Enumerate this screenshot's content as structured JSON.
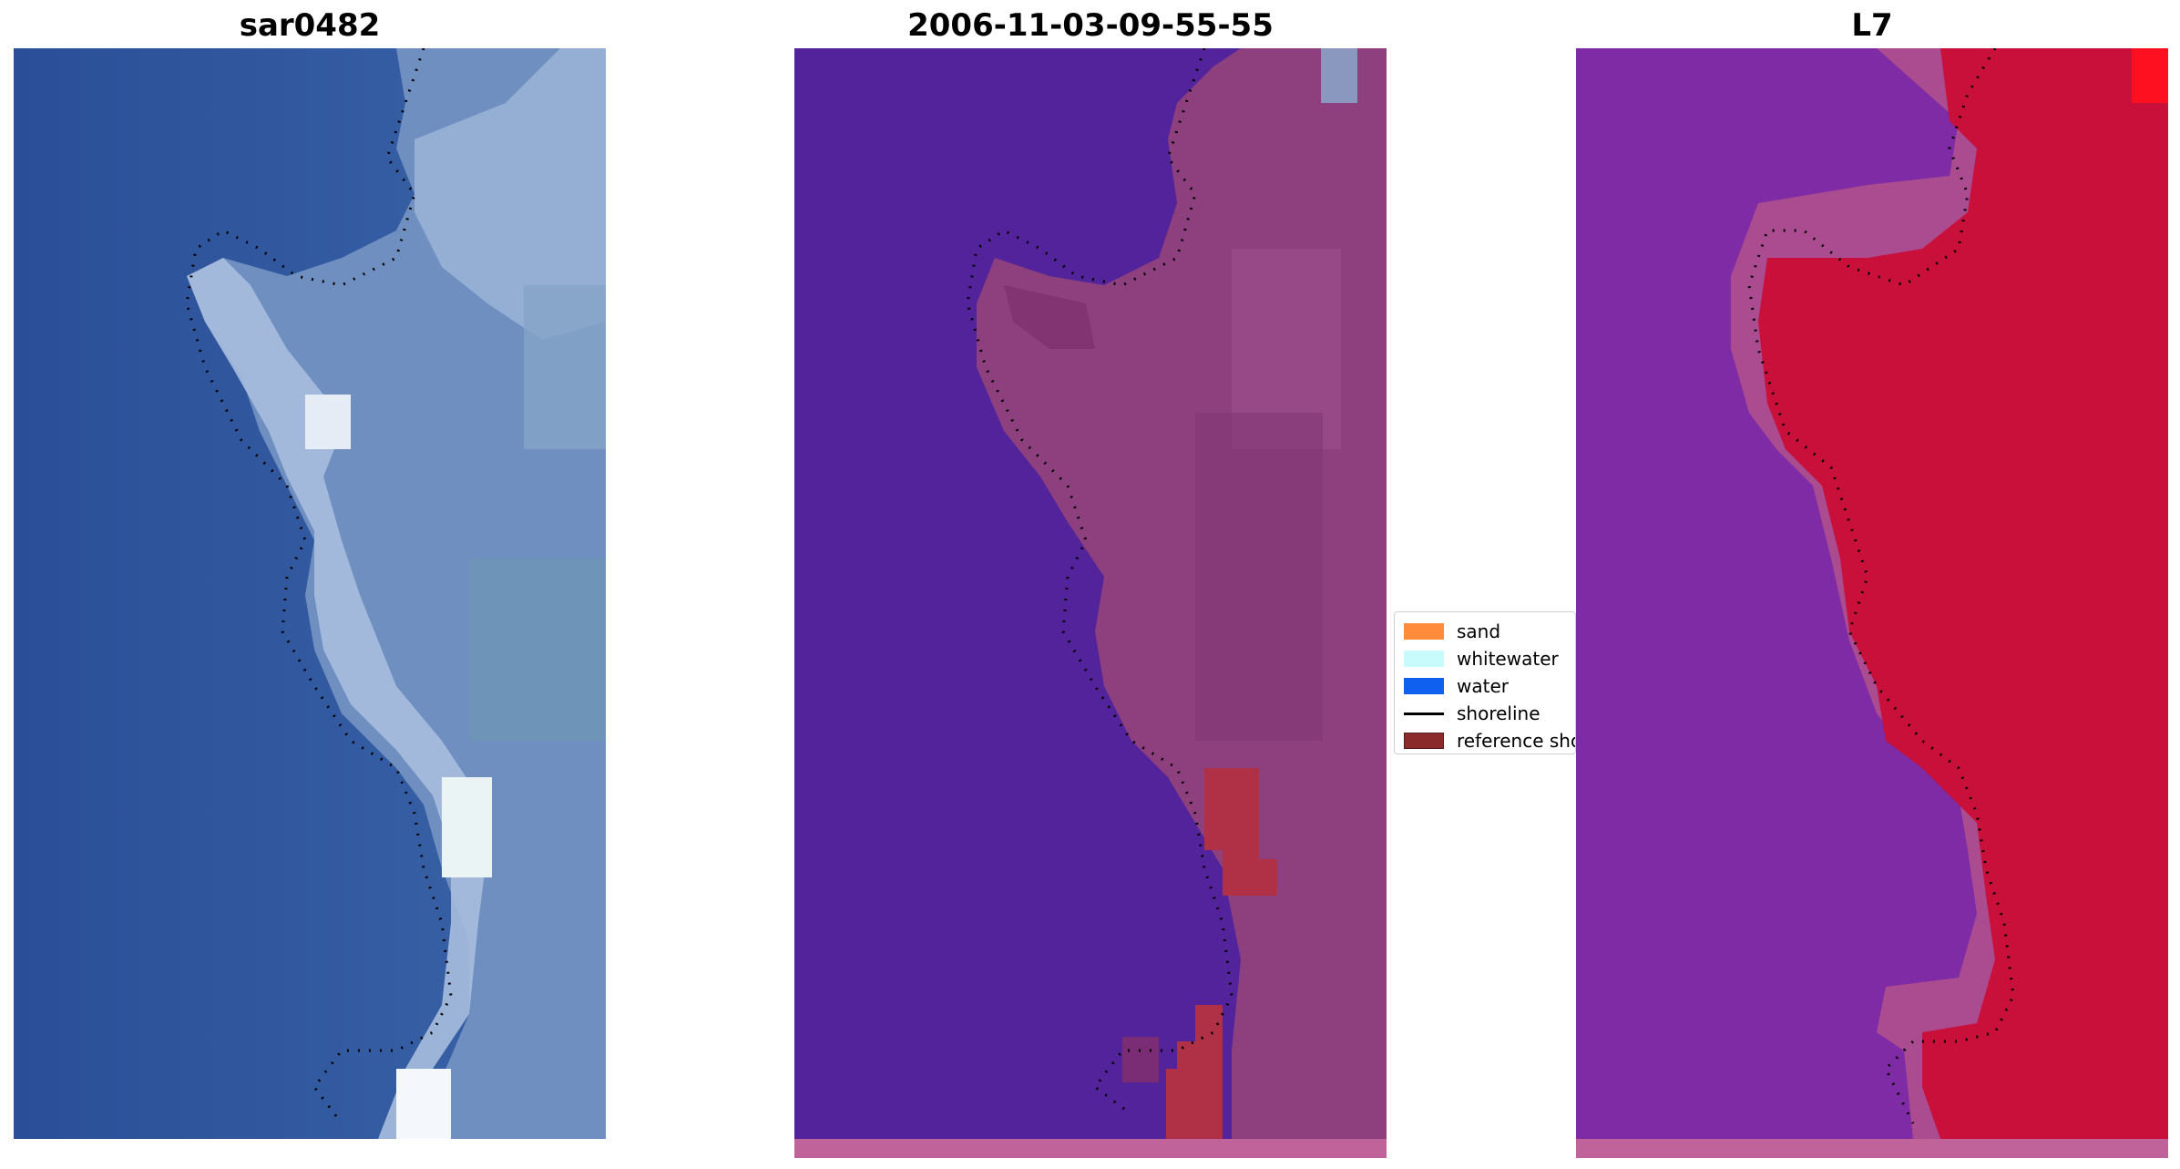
{
  "panels": [
    {
      "title": "sar0482"
    },
    {
      "title": "2006-11-03-09-55-55"
    },
    {
      "title": "L7"
    }
  ],
  "legend": {
    "items": [
      {
        "label": "sand",
        "color": "#ff8c3a",
        "kind": "patch"
      },
      {
        "label": "whitewater",
        "color": "#c8fbfb",
        "kind": "patch"
      },
      {
        "label": "water",
        "color": "#1060f0",
        "kind": "patch"
      },
      {
        "label": "shoreline",
        "color": "#000000",
        "kind": "line"
      },
      {
        "label": "reference shoreline",
        "color": "#8b2a2a",
        "kind": "patch"
      }
    ]
  },
  "colors": {
    "rgb_water": "#2a4f98",
    "rgb_land": "#8ea9cc",
    "rgb_white": "#f4f7fb",
    "class_water": "#52239a",
    "class_land": "#8e3f7e",
    "class_sand": "#b03045",
    "index_low": "#8030a8",
    "index_high": "#c8103a",
    "bottom_strip": "#c0639a"
  }
}
